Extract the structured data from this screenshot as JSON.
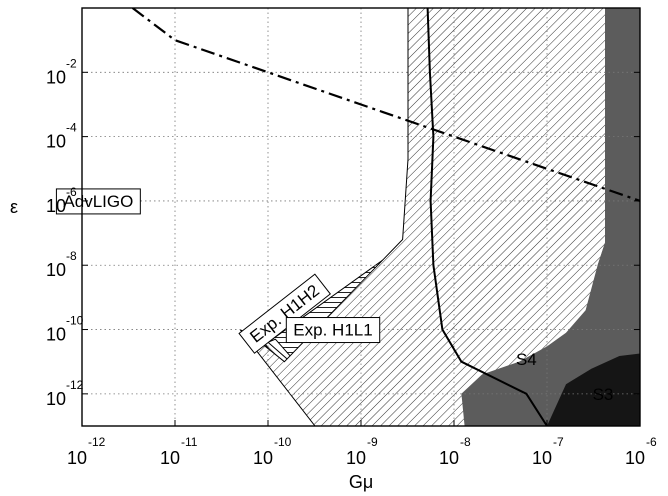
{
  "chart_data": {
    "type": "area",
    "title": "",
    "xlabel": "Gμ",
    "ylabel": "ε",
    "x_scale": "log",
    "y_scale": "log",
    "xlim": [
      1e-12,
      1e-06
    ],
    "ylim": [
      1e-13,
      1
    ],
    "grid": true,
    "x_ticks": [
      {
        "base": "10",
        "exp": "-12",
        "value": 1e-12
      },
      {
        "base": "10",
        "exp": "-11",
        "value": 1e-11
      },
      {
        "base": "10",
        "exp": "-10",
        "value": 1e-10
      },
      {
        "base": "10",
        "exp": "-9",
        "value": 1e-09
      },
      {
        "base": "10",
        "exp": "-8",
        "value": 1e-08
      },
      {
        "base": "10",
        "exp": "-7",
        "value": 1e-07
      },
      {
        "base": "10",
        "exp": "-6",
        "value": 1e-06
      }
    ],
    "y_ticks": [
      {
        "base": "10",
        "exp": "-12",
        "value": 1e-12
      },
      {
        "base": "10",
        "exp": "-10",
        "value": 1e-10
      },
      {
        "base": "10",
        "exp": "-8",
        "value": 1e-08
      },
      {
        "base": "10",
        "exp": "-6",
        "value": 1e-06
      },
      {
        "base": "10",
        "exp": "-4",
        "value": 0.0001
      },
      {
        "base": "10",
        "exp": "-2",
        "value": 0.01
      }
    ],
    "regions": [
      {
        "label": "AdvLIGO",
        "fill": "hatch-diagonal-fine",
        "color": "#333333",
        "label_at": [
          1.5e-12,
          1e-06
        ],
        "boundary": [
          [
            3.2e-10,
            1e-13
          ],
          [
            5e-11,
            1e-10
          ],
          [
            7.5e-11,
            5e-11
          ],
          [
            1.5e-10,
            1e-11
          ],
          [
            2.8e-09,
            6.3e-08
          ],
          [
            3.2e-09,
            2e-05
          ],
          [
            3.2e-09,
            1
          ]
        ]
      },
      {
        "label": "Exp. H1H2",
        "fill": "hatch-diagonal-coarse",
        "color": "#333333",
        "label_at": [
          1.5e-10,
          3.2e-10
        ],
        "boundary": [
          [
            4.5e-10,
            1e-13
          ],
          [
            7e-11,
            1e-10
          ],
          [
            1e-10,
            4e-11
          ],
          [
            3e-10,
            2.5e-12
          ],
          [
            4e-09,
            5e-09
          ],
          [
            5e-09,
            1e-05
          ],
          [
            5e-09,
            1
          ]
        ]
      },
      {
        "label": "Exp. H1L1",
        "fill": "hatch-horizontal",
        "color": "#222222",
        "label_at": [
          5e-10,
          1e-10
        ],
        "boundary": [
          [
            8e-10,
            1e-13
          ],
          [
            1.2e-10,
            5e-11
          ],
          [
            1e-10,
            4e-11
          ],
          [
            2e-09,
            2e-08
          ],
          [
            2.2e-08,
            1e-06
          ],
          [
            2.5e-08,
            0.0001
          ],
          [
            2.5e-08,
            1
          ]
        ]
      },
      {
        "label": "S4",
        "fill": "solid",
        "color": "#5c5c5c",
        "label_at": [
          6e-08,
          1.2e-11
        ]
      },
      {
        "label": "S3",
        "fill": "solid",
        "color": "#151515",
        "label_at": [
          4e-07,
          1e-12
        ]
      },
      {
        "label": "",
        "fill": "solid",
        "color": "#5c5c5c",
        "description": "excluded band along right edge"
      }
    ],
    "lines": [
      {
        "style": "dash-dot",
        "color": "#000000",
        "points": [
          [
            3.5e-12,
            1
          ],
          [
            1e-11,
            0.1
          ],
          [
            1e-10,
            0.01
          ],
          [
            1e-09,
            0.001
          ],
          [
            1e-08,
            0.0001
          ],
          [
            1e-07,
            1e-05
          ],
          [
            1e-06,
            1e-06
          ]
        ]
      },
      {
        "style": "solid",
        "color": "#000000",
        "points": [
          [
            5.2e-09,
            1
          ],
          [
            5.5e-09,
            0.01
          ],
          [
            6e-09,
            0.0001
          ],
          [
            5.6e-09,
            1e-06
          ],
          [
            6e-09,
            1e-08
          ],
          [
            7.5e-09,
            1e-10
          ],
          [
            1.2e-08,
            1e-11
          ],
          [
            6e-08,
            1e-12
          ],
          [
            1e-07,
            1e-13
          ]
        ]
      }
    ]
  }
}
